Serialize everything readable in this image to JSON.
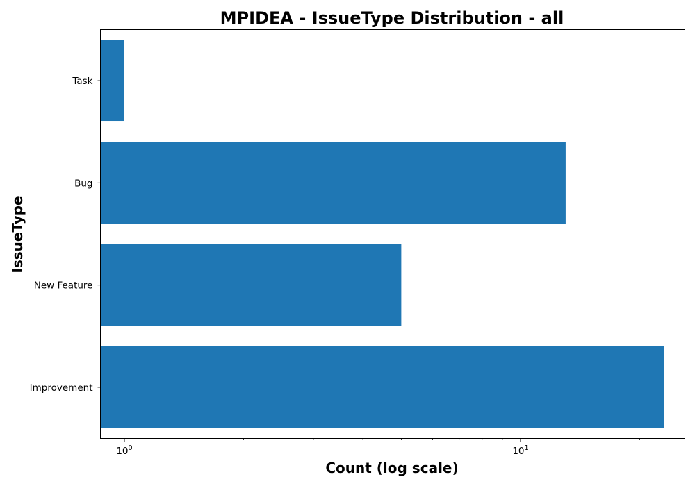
{
  "chart_data": {
    "type": "bar",
    "orientation": "horizontal",
    "title": "MPIDEA - IssueType Distribution - all",
    "xlabel": "Count (log scale)",
    "ylabel": "IssueType",
    "x_scale": "log",
    "xlim": [
      0.87,
      26
    ],
    "categories": [
      "Task",
      "Bug",
      "New Feature",
      "Improvement"
    ],
    "values": [
      1,
      13,
      5,
      23
    ],
    "x_ticks": [
      {
        "value": 1,
        "base": "10",
        "exp": "0"
      },
      {
        "value": 10,
        "base": "10",
        "exp": "1"
      }
    ],
    "bar_color": "#1f77b4",
    "grid": false,
    "legend": "none"
  }
}
